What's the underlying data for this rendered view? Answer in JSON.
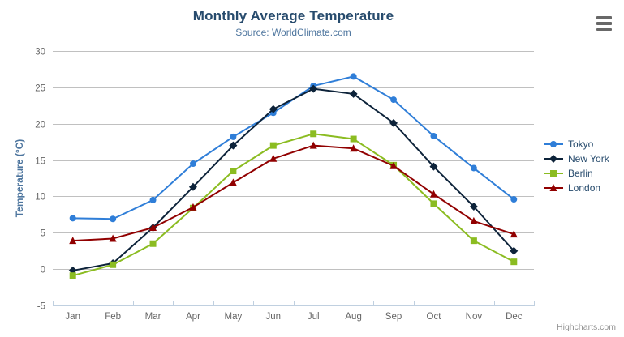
{
  "header": {
    "title": "Monthly Average Temperature",
    "subtitle": "Source: WorldClimate.com"
  },
  "credits": {
    "label": "Highcharts.com"
  },
  "menu": {
    "icon": "hamburger-icon"
  },
  "chart_data": {
    "type": "line",
    "title": "Monthly Average Temperature",
    "subtitle": "Source: WorldClimate.com",
    "xlabel": "",
    "ylabel": "Temperature (°C)",
    "ylim": [
      -5,
      30
    ],
    "ytick_step": 5,
    "grid": true,
    "legend_position": "right-middle",
    "categories": [
      "Jan",
      "Feb",
      "Mar",
      "Apr",
      "May",
      "Jun",
      "Jul",
      "Aug",
      "Sep",
      "Oct",
      "Nov",
      "Dec"
    ],
    "series": [
      {
        "name": "Tokyo",
        "color": "#2f7ed8",
        "marker": "circle",
        "values": [
          7.0,
          6.9,
          9.5,
          14.5,
          18.2,
          21.5,
          25.2,
          26.5,
          23.3,
          18.3,
          13.9,
          9.6
        ]
      },
      {
        "name": "New York",
        "color": "#0d233a",
        "marker": "diamond",
        "values": [
          -0.2,
          0.8,
          5.7,
          11.3,
          17.0,
          22.0,
          24.8,
          24.1,
          20.1,
          14.1,
          8.6,
          2.5
        ]
      },
      {
        "name": "Berlin",
        "color": "#8bbc21",
        "marker": "square",
        "values": [
          -0.9,
          0.6,
          3.5,
          8.4,
          13.5,
          17.0,
          18.6,
          17.9,
          14.3,
          9.0,
          3.9,
          1.0
        ]
      },
      {
        "name": "London",
        "color": "#910000",
        "marker": "triangle",
        "values": [
          3.9,
          4.2,
          5.7,
          8.5,
          11.9,
          15.2,
          17.0,
          16.6,
          14.2,
          10.3,
          6.6,
          4.8
        ]
      }
    ]
  },
  "style_colors": {
    "grid_line": "#c0c0c0",
    "axis_line": "#c0d0e0",
    "axis_label": "#666666",
    "title": "#274b6d",
    "subtitle": "#4d759e",
    "legend_text": "#274b6d",
    "credits_text": "#909090"
  }
}
